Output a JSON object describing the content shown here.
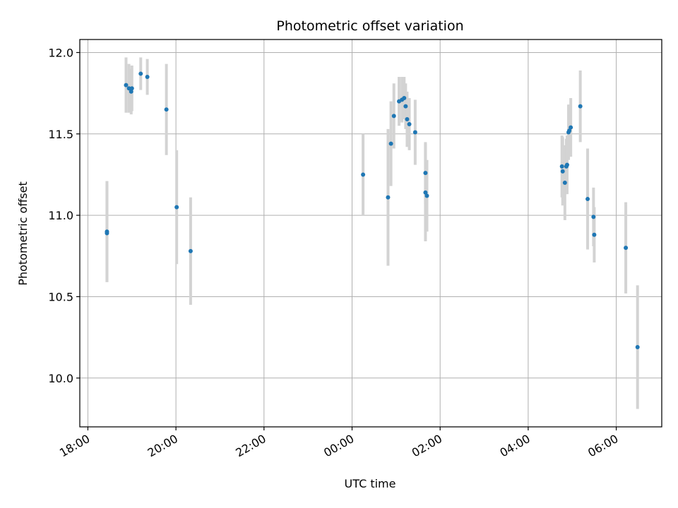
{
  "chart_data": {
    "type": "scatter",
    "title": "Photometric offset variation",
    "xlabel": "UTC time",
    "ylabel": "Photometric offset",
    "x_ticks": [
      "18:00",
      "20:00",
      "22:00",
      "00:00",
      "02:00",
      "04:00",
      "06:00"
    ],
    "y_ticks": [
      "10.0",
      "10.5",
      "11.0",
      "11.5",
      "12.0"
    ],
    "y_tick_values": [
      10.0,
      10.5,
      11.0,
      11.5,
      12.0
    ],
    "xlim": [
      "17:49",
      "07:02"
    ],
    "ylim": [
      9.7,
      12.08
    ],
    "grid": true,
    "series": [
      {
        "marker_color": "#1f77b4",
        "errorbar_color": "#d3d3d3",
        "points": [
          {
            "t": "18:26",
            "y": 10.9,
            "err": 0.31
          },
          {
            "t": "18:26",
            "y": 10.89,
            "err": 0.3
          },
          {
            "t": "18:52",
            "y": 11.8,
            "err": 0.17
          },
          {
            "t": "18:56",
            "y": 11.78,
            "err": 0.15
          },
          {
            "t": "18:59",
            "y": 11.76,
            "err": 0.14
          },
          {
            "t": "19:00",
            "y": 11.78,
            "err": 0.14
          },
          {
            "t": "19:12",
            "y": 11.87,
            "err": 0.1
          },
          {
            "t": "19:21",
            "y": 11.85,
            "err": 0.11
          },
          {
            "t": "19:47",
            "y": 11.65,
            "err": 0.28
          },
          {
            "t": "20:01",
            "y": 11.05,
            "err": 0.35
          },
          {
            "t": "20:20",
            "y": 10.78,
            "err": 0.33
          },
          {
            "t": "00:15",
            "y": 11.25,
            "err": 0.25
          },
          {
            "t": "00:49",
            "y": 11.11,
            "err": 0.42
          },
          {
            "t": "00:53",
            "y": 11.44,
            "err": 0.26
          },
          {
            "t": "00:57",
            "y": 11.61,
            "err": 0.2
          },
          {
            "t": "01:04",
            "y": 11.7,
            "err": 0.15
          },
          {
            "t": "01:08",
            "y": 11.71,
            "err": 0.14
          },
          {
            "t": "01:11",
            "y": 11.72,
            "err": 0.13
          },
          {
            "t": "01:13",
            "y": 11.67,
            "err": 0.14
          },
          {
            "t": "01:15",
            "y": 11.59,
            "err": 0.17
          },
          {
            "t": "01:18",
            "y": 11.56,
            "err": 0.16
          },
          {
            "t": "01:26",
            "y": 11.51,
            "err": 0.2
          },
          {
            "t": "01:40",
            "y": 11.14,
            "err": 0.3
          },
          {
            "t": "01:40",
            "y": 11.26,
            "err": 0.19
          },
          {
            "t": "01:42",
            "y": 11.12,
            "err": 0.22
          },
          {
            "t": "04:46",
            "y": 11.3,
            "err": 0.19
          },
          {
            "t": "04:47",
            "y": 11.27,
            "err": 0.21
          },
          {
            "t": "04:50",
            "y": 11.2,
            "err": 0.23
          },
          {
            "t": "04:52",
            "y": 11.3,
            "err": 0.17
          },
          {
            "t": "04:53",
            "y": 11.31,
            "err": 0.18
          },
          {
            "t": "04:55",
            "y": 11.51,
            "err": 0.17
          },
          {
            "t": "04:56",
            "y": 11.52,
            "err": 0.16
          },
          {
            "t": "04:58",
            "y": 11.54,
            "err": 0.18
          },
          {
            "t": "05:11",
            "y": 11.67,
            "err": 0.22
          },
          {
            "t": "05:21",
            "y": 11.1,
            "err": 0.31
          },
          {
            "t": "05:29",
            "y": 10.99,
            "err": 0.18
          },
          {
            "t": "05:30",
            "y": 10.88,
            "err": 0.17
          },
          {
            "t": "06:13",
            "y": 10.8,
            "err": 0.28
          },
          {
            "t": "06:29",
            "y": 10.19,
            "err": 0.38
          }
        ]
      }
    ]
  }
}
